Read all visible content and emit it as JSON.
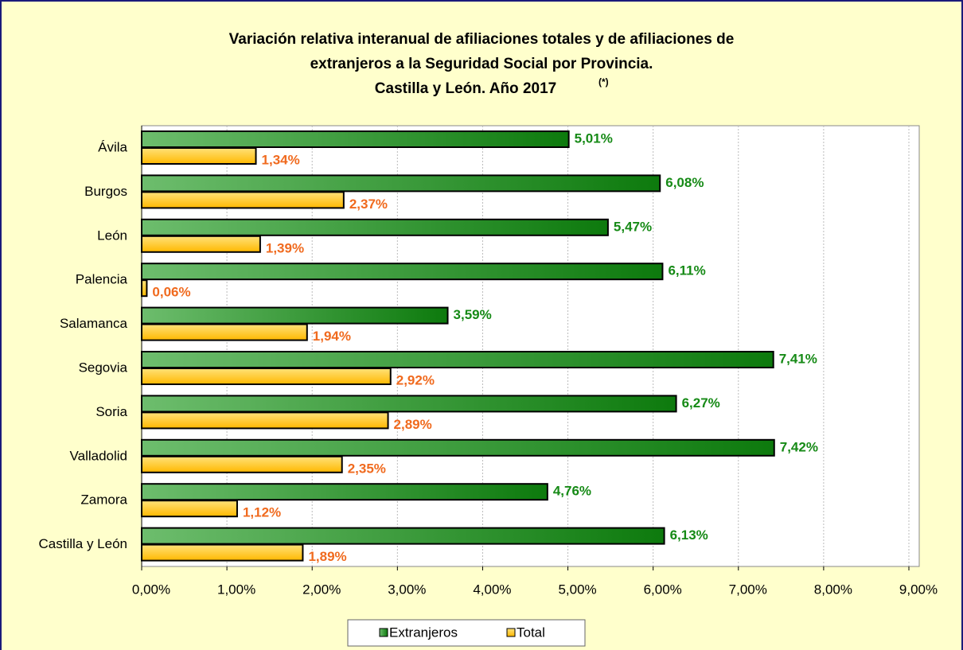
{
  "chart_data": {
    "type": "barh",
    "title": [
      "Variación relativa interanual de afiliaciones totales y de afiliaciones de",
      "extranjeros a la Seguridad Social por Provincia.",
      "Castilla y León. Año 2017"
    ],
    "title_note": "(*)",
    "categories": [
      "Ávila",
      "Burgos",
      "León",
      "Palencia",
      "Salamanca",
      "Segovia",
      "Soria",
      "Valladolid",
      "Zamora",
      "Castilla y León"
    ],
    "series": [
      {
        "name": "Extranjeros",
        "color": "#2e9a2e",
        "label_color": "#168a16",
        "values": [
          5.01,
          6.08,
          5.47,
          6.11,
          3.59,
          7.41,
          6.27,
          7.42,
          4.76,
          6.13
        ],
        "value_labels": [
          "5,01%",
          "6,08%",
          "5,47%",
          "6,11%",
          "3,59%",
          "7,41%",
          "6,27%",
          "7,42%",
          "4,76%",
          "6,13%"
        ]
      },
      {
        "name": "Total",
        "color": "#ffc61a",
        "label_color": "#f06a1e",
        "values": [
          1.34,
          2.37,
          1.39,
          0.06,
          1.94,
          2.92,
          2.89,
          2.35,
          1.12,
          1.89
        ],
        "value_labels": [
          "1,34%",
          "2,37%",
          "1,39%",
          "0,06%",
          "1,94%",
          "2,92%",
          "2,89%",
          "2,35%",
          "1,12%",
          "1,89%"
        ]
      }
    ],
    "xlim": [
      0,
      9
    ],
    "xticks": [
      {
        "value": 0,
        "label": "0,00%"
      },
      {
        "value": 1,
        "label": "1,00%"
      },
      {
        "value": 2,
        "label": "2,00%"
      },
      {
        "value": 3,
        "label": "3,00%"
      },
      {
        "value": 4,
        "label": "4,00%"
      },
      {
        "value": 5,
        "label": "5,00%"
      },
      {
        "value": 6,
        "label": "6,00%"
      },
      {
        "value": 7,
        "label": "7,00%"
      },
      {
        "value": 8,
        "label": "8,00%"
      },
      {
        "value": 9,
        "label": "9,00%"
      }
    ],
    "grid": true,
    "legend": "bottom"
  }
}
